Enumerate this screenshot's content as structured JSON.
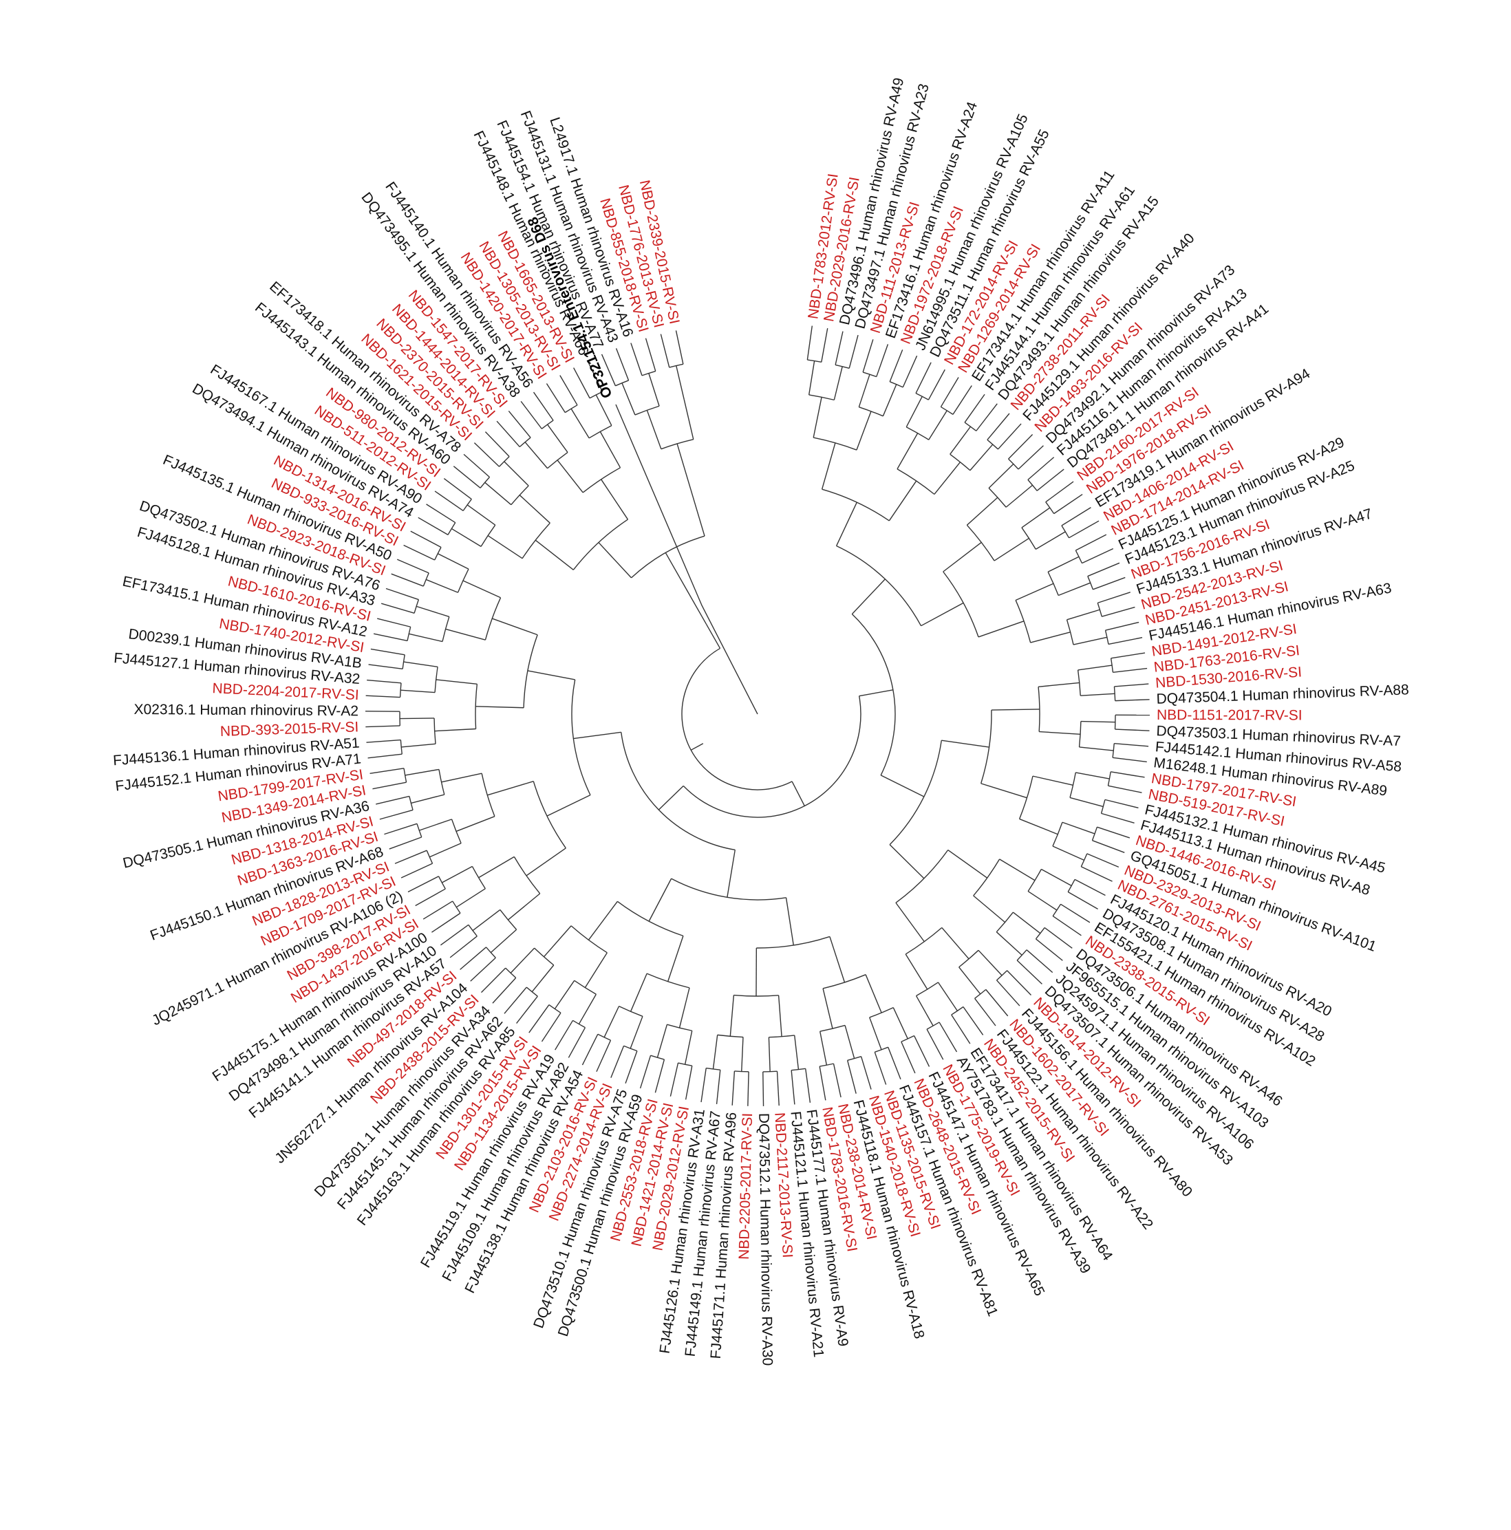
{
  "colors": {
    "reference": "#111111",
    "sample": "#cc1f1f",
    "branch": "#333333",
    "background": "#ffffff"
  },
  "tree": {
    "layout": "circular",
    "outgroup": "OP321154.1 Enterovirus D68",
    "leaves": [
      {
        "label": "NBD-1783-2012-RV-SI",
        "type": "sample"
      },
      {
        "label": "NBD-2029-2016-RV-SI",
        "type": "sample"
      },
      {
        "label": "DQ473496.1 Human rhinovirus RV-A49",
        "type": "ref"
      },
      {
        "label": "DQ473497.1 Human rhinovirus RV-A23",
        "type": "ref"
      },
      {
        "label": "NBD-111-2013-RV-SI",
        "type": "sample"
      },
      {
        "label": "EF173416.1 Human rhinovirus RV-A24",
        "type": "ref"
      },
      {
        "label": "NBD-1972-2018-RV-SI",
        "type": "sample"
      },
      {
        "label": "JN614995.1 Human rhinovirus RV-A105",
        "type": "ref"
      },
      {
        "label": "DQ473511.1 Human rhinovirus RV-A55",
        "type": "ref"
      },
      {
        "label": "NBD-172-2014-RV-SI",
        "type": "sample"
      },
      {
        "label": "NBD-1269-2014-RV-SI",
        "type": "sample"
      },
      {
        "label": "EF173414.1 Human rhinovirus RV-A11",
        "type": "ref"
      },
      {
        "label": "FJ445144.1 Human rhinovirus RV-A61",
        "type": "ref"
      },
      {
        "label": "DQ473493.1 Human rhinovirus RV-A15",
        "type": "ref"
      },
      {
        "label": "NBD-2738-2011-RV-SI",
        "type": "sample"
      },
      {
        "label": "FJ445129.1 Human rhinovirus RV-A40",
        "type": "ref"
      },
      {
        "label": "NBD-1493-2016-RV-SI",
        "type": "sample"
      },
      {
        "label": "DQ473492.1 Human rhinovirus RV-A73",
        "type": "ref"
      },
      {
        "label": "FJ445116.1 Human rhinovirus RV-A13",
        "type": "ref"
      },
      {
        "label": "DQ473491.1 Human rhinovirus RV-A41",
        "type": "ref"
      },
      {
        "label": "NBD-2160-2017-RV-SI",
        "type": "sample"
      },
      {
        "label": "NBD-1976-2018-RV-SI",
        "type": "sample"
      },
      {
        "label": "EF173419.1 Human rhinovirus RV-A94",
        "type": "ref"
      },
      {
        "label": "NBD-1406-2014-RV-SI",
        "type": "sample"
      },
      {
        "label": "NBD-1714-2014-RV-SI",
        "type": "sample"
      },
      {
        "label": "FJ445125.1 Human rhinovirus RV-A29",
        "type": "ref"
      },
      {
        "label": "FJ445123.1 Human rhinovirus RV-A25",
        "type": "ref"
      },
      {
        "label": "NBD-1756-2016-RV-SI",
        "type": "sample"
      },
      {
        "label": "FJ445133.1 Human rhinovirus RV-A47",
        "type": "ref"
      },
      {
        "label": "NBD-2542-2013-RV-SI",
        "type": "sample"
      },
      {
        "label": "NBD-2451-2013-RV-SI",
        "type": "sample"
      },
      {
        "label": "FJ445146.1 Human rhinovirus RV-A63",
        "type": "ref"
      },
      {
        "label": "NBD-1491-2012-RV-SI",
        "type": "sample"
      },
      {
        "label": "NBD-1763-2016-RV-SI",
        "type": "sample"
      },
      {
        "label": "NBD-1530-2016-RV-SI",
        "type": "sample"
      },
      {
        "label": "DQ473504.1 Human rhinovirus RV-A88",
        "type": "ref"
      },
      {
        "label": "NBD-1151-2017-RV-SI",
        "type": "sample"
      },
      {
        "label": "DQ473503.1 Human rhinovirus RV-A7",
        "type": "ref"
      },
      {
        "label": "FJ445142.1 Human rhinovirus RV-A58",
        "type": "ref"
      },
      {
        "label": "M16248.1 Human rhinovirus RV-A89",
        "type": "ref"
      },
      {
        "label": "NBD-1797-2017-RV-SI",
        "type": "sample"
      },
      {
        "label": "NBD-519-2017-RV-SI",
        "type": "sample"
      },
      {
        "label": "FJ445132.1 Human rhinovirus RV-A45",
        "type": "ref"
      },
      {
        "label": "FJ445113.1 Human rhinovirus RV-A8",
        "type": "ref"
      },
      {
        "label": "NBD-1446-2016-RV-SI",
        "type": "sample"
      },
      {
        "label": "GQ415051.1 Human rhinovirus RV-A101",
        "type": "ref"
      },
      {
        "label": "NBD-2329-2013-RV-SI",
        "type": "sample"
      },
      {
        "label": "NBD-2761-2015-RV-SI",
        "type": "sample"
      },
      {
        "label": "FJ445120.1 Human rhinovirus RV-A20",
        "type": "ref"
      },
      {
        "label": "DQ473508.1 Human rhinovirus RV-A28",
        "type": "ref"
      },
      {
        "label": "EF155421.1 Human rhinovirus RV-A102",
        "type": "ref"
      },
      {
        "label": "NBD-2338-2015-RV-SI",
        "type": "sample"
      },
      {
        "label": "DQ473506.1 Human rhinovirus RV-A46",
        "type": "ref"
      },
      {
        "label": "JF965515.1 Human rhinovirus RV-A103",
        "type": "ref"
      },
      {
        "label": "JQ245971.1 Human rhinovirus RV-A106",
        "type": "ref"
      },
      {
        "label": "DQ473507.1 Human rhinovirus RV-A53",
        "type": "ref"
      },
      {
        "label": "NBD-1914-2012-RV-SI",
        "type": "sample"
      },
      {
        "label": "FJ445156.1 Human rhinovirus RV-A80",
        "type": "ref"
      },
      {
        "label": "NBD-1602-2017-RV-SI",
        "type": "sample"
      },
      {
        "label": "FJ445122.1 Human rhinovirus RV-A22",
        "type": "ref"
      },
      {
        "label": "NBD-2452-2015-RV-SI",
        "type": "sample"
      },
      {
        "label": "EF173417.1 Human rhinovirus RV-A64",
        "type": "ref"
      },
      {
        "label": "AY751783.1 Human rhinovirus RV-A39",
        "type": "ref"
      },
      {
        "label": "NBD-1775-2019-RV-SI",
        "type": "sample"
      },
      {
        "label": "FJ445147.1 Human rhinovirus RV-A65",
        "type": "ref"
      },
      {
        "label": "NBD-2648-2015-RV-SI",
        "type": "sample"
      },
      {
        "label": "FJ445157.1 Human rhinovirus RV-A81",
        "type": "ref"
      },
      {
        "label": "NBD-1135-2015-RV-SI",
        "type": "sample"
      },
      {
        "label": "NBD-1540-2018-RV-SI",
        "type": "sample"
      },
      {
        "label": "FJ445118.1 Human rhinovirus RV-A18",
        "type": "ref"
      },
      {
        "label": "NBD-238-2014-RV-SI",
        "type": "sample"
      },
      {
        "label": "NBD-1783-2016-RV-SI",
        "type": "sample"
      },
      {
        "label": "FJ445177.1 Human rhinovirus RV-A9",
        "type": "ref"
      },
      {
        "label": "FJ445121.1 Human rhinovirus RV-A21",
        "type": "ref"
      },
      {
        "label": "NBD-2117-2013-RV-SI",
        "type": "sample"
      },
      {
        "label": "DQ473512.1 Human rhinovirus RV-A30",
        "type": "ref"
      },
      {
        "label": "NBD-2205-2017-RV-SI",
        "type": "sample"
      },
      {
        "label": "FJ445171.1 Human rhinovirus RV-A96",
        "type": "ref"
      },
      {
        "label": "FJ445149.1 Human rhinovirus RV-A67",
        "type": "ref"
      },
      {
        "label": "FJ445126.1 Human rhinovirus RV-A31",
        "type": "ref"
      },
      {
        "label": "NBD-2029-2012-RV-SI",
        "type": "sample"
      },
      {
        "label": "NBD-1421-2014-RV-SI",
        "type": "sample"
      },
      {
        "label": "NBD-2553-2018-RV-SI",
        "type": "sample"
      },
      {
        "label": "DQ473500.1 Human rhinovirus RV-A59",
        "type": "ref"
      },
      {
        "label": "DQ473510.1 Human rhinovirus RV-A75",
        "type": "ref"
      },
      {
        "label": "NBD-2274-2014-RV-SI",
        "type": "sample"
      },
      {
        "label": "NBD-2103-2016-RV-SI",
        "type": "sample"
      },
      {
        "label": "FJ445138.1 Human rhinovirus RV-A54",
        "type": "ref"
      },
      {
        "label": "FJ445109.1 Human rhinovirus RV-A82",
        "type": "ref"
      },
      {
        "label": "FJ445119.1 Human rhinovirus RV-A19",
        "type": "ref"
      },
      {
        "label": "NBD-1134-2015-RV-SI",
        "type": "sample"
      },
      {
        "label": "NBD-1301-2015-RV-SI",
        "type": "sample"
      },
      {
        "label": "FJ445163.1 Human rhinovirus RV-A85",
        "type": "ref"
      },
      {
        "label": "FJ445145.1 Human rhinovirus RV-A62",
        "type": "ref"
      },
      {
        "label": "DQ473501.1 Human rhinovirus RV-A34",
        "type": "ref"
      },
      {
        "label": "NBD-2438-2015-RV-SI",
        "type": "sample"
      },
      {
        "label": "JN562727.1 Human rhinovirus RV-A104",
        "type": "ref"
      },
      {
        "label": "NBD-497-2018-RV-SI",
        "type": "sample"
      },
      {
        "label": "FJ445141.1 Human rhinovirus RV-A57",
        "type": "ref"
      },
      {
        "label": "DQ473498.1 Human rhinovirus RV-A10",
        "type": "ref"
      },
      {
        "label": "FJ445175.1 Human rhinovirus RV-A100",
        "type": "ref"
      },
      {
        "label": "NBD-1437-2016-RV-SI",
        "type": "sample"
      },
      {
        "label": "NBD-398-2017-RV-SI",
        "type": "sample"
      },
      {
        "label": "JQ245971.1 Human rhinovirus RV-A106 (2)",
        "type": "ref"
      },
      {
        "label": "NBD-1709-2017-RV-SI",
        "type": "sample"
      },
      {
        "label": "NBD-1828-2013-RV-SI",
        "type": "sample"
      },
      {
        "label": "FJ445150.1 Human rhinovirus RV-A68",
        "type": "ref"
      },
      {
        "label": "NBD-1363-2016-RV-SI",
        "type": "sample"
      },
      {
        "label": "NBD-1318-2014-RV-SI",
        "type": "sample"
      },
      {
        "label": "DQ473505.1 Human rhinovirus RV-A36",
        "type": "ref"
      },
      {
        "label": "NBD-1349-2014-RV-SI",
        "type": "sample"
      },
      {
        "label": "NBD-1799-2017-RV-SI",
        "type": "sample"
      },
      {
        "label": "FJ445152.1 Human rhinovirus RV-A71",
        "type": "ref"
      },
      {
        "label": "FJ445136.1 Human rhinovirus RV-A51",
        "type": "ref"
      },
      {
        "label": "NBD-393-2015-RV-SI",
        "type": "sample"
      },
      {
        "label": "X02316.1 Human rhinovirus RV-A2",
        "type": "ref"
      },
      {
        "label": "NBD-2204-2017-RV-SI",
        "type": "sample"
      },
      {
        "label": "FJ445127.1 Human rhinovirus RV-A32",
        "type": "ref"
      },
      {
        "label": "D00239.1 Human rhinovirus RV-A1B",
        "type": "ref"
      },
      {
        "label": "NBD-1740-2012-RV-SI",
        "type": "sample"
      },
      {
        "label": "EF173415.1 Human rhinovirus RV-A12",
        "type": "ref"
      },
      {
        "label": "NBD-1610-2016-RV-SI",
        "type": "sample"
      },
      {
        "label": "FJ445128.1 Human rhinovirus RV-A33",
        "type": "ref"
      },
      {
        "label": "DQ473502.1 Human rhinovirus RV-A76",
        "type": "ref"
      },
      {
        "label": "NBD-2923-2018-RV-SI",
        "type": "sample"
      },
      {
        "label": "FJ445135.1 Human rhinovirus RV-A50",
        "type": "ref"
      },
      {
        "label": "NBD-933-2016-RV-SI",
        "type": "sample"
      },
      {
        "label": "NBD-1314-2016-RV-SI",
        "type": "sample"
      },
      {
        "label": "DQ473494.1 Human rhinovirus RV-A74",
        "type": "ref"
      },
      {
        "label": "FJ445167.1 Human rhinovirus RV-A90",
        "type": "ref"
      },
      {
        "label": "NBD-511-2012-RV-SI",
        "type": "sample"
      },
      {
        "label": "NBD-980-2012-RV-SI",
        "type": "sample"
      },
      {
        "label": "FJ445143.1 Human rhinovirus RV-A60",
        "type": "ref"
      },
      {
        "label": "EF173418.1 Human rhinovirus RV-A78",
        "type": "ref"
      },
      {
        "label": "NBD-1621-2015-RV-SI",
        "type": "sample"
      },
      {
        "label": "NBD-2370-2015-RV-SI",
        "type": "sample"
      },
      {
        "label": "NBD-1444-2014-RV-SI",
        "type": "sample"
      },
      {
        "label": "NBD-1547-2017-RV-SI",
        "type": "sample"
      },
      {
        "label": "DQ473495.1 Human rhinovirus RV-A38",
        "type": "ref"
      },
      {
        "label": "FJ445140.1 Human rhinovirus RV-A56",
        "type": "ref"
      },
      {
        "label": "NBD-1420-2017-RV-SI",
        "type": "sample"
      },
      {
        "label": "NBD-1305-2013-RV-SI",
        "type": "sample"
      },
      {
        "label": "NBD-1665-2013-RV-SI",
        "type": "sample"
      },
      {
        "label": "FJ445148.1 Human rhinovirus RV-A66",
        "type": "ref"
      },
      {
        "label": "FJ445154.1 Human rhinovirus RV-A77",
        "type": "ref"
      },
      {
        "label": "FJ445131.1 Human rhinovirus RV-A43",
        "type": "ref"
      },
      {
        "label": "L24917.1 Human rhinovirus RV-A16",
        "type": "ref"
      },
      {
        "label": "NBD-855-2018-RV-SI",
        "type": "sample"
      },
      {
        "label": "NBD-1776-2013-RV-SI",
        "type": "sample"
      },
      {
        "label": "NBD-2339-2015-RV-SI",
        "type": "sample"
      }
    ]
  }
}
